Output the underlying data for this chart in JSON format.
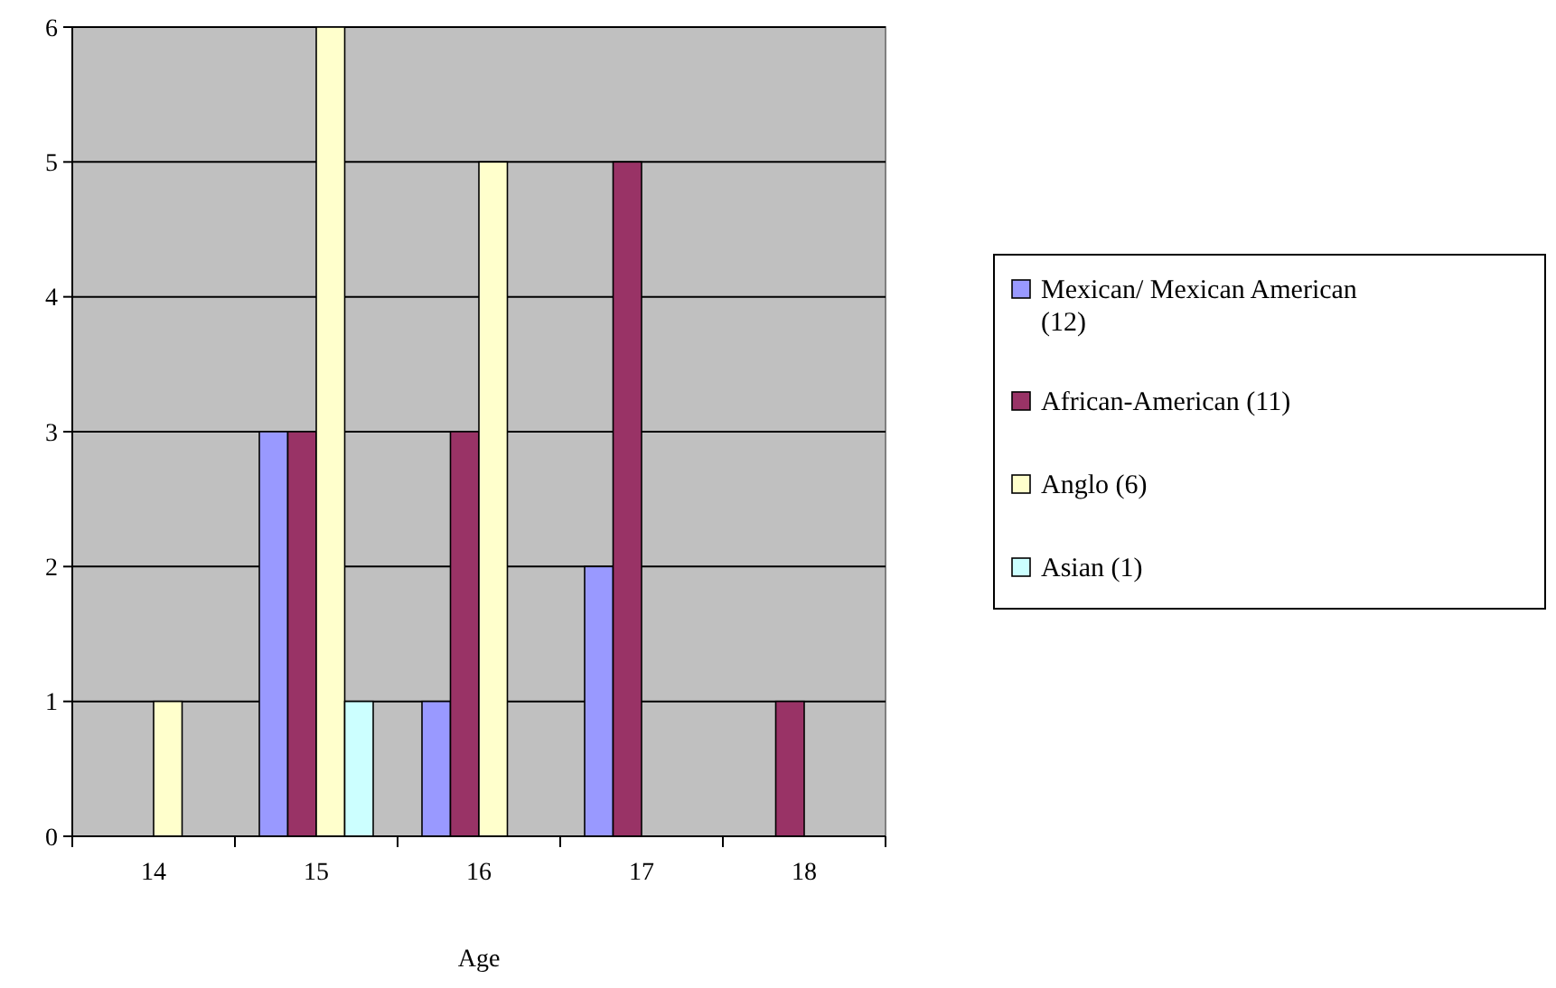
{
  "chart_data": {
    "type": "bar",
    "xlabel": "Age",
    "categories": [
      "14",
      "15",
      "16",
      "17",
      "18"
    ],
    "series": [
      {
        "name": "Mexican/ Mexican American (12)",
        "color": "#9999ff",
        "values": [
          0,
          3,
          1,
          2,
          0
        ]
      },
      {
        "name": "African-American (11)",
        "color": "#993366",
        "values": [
          0,
          3,
          3,
          5,
          1
        ]
      },
      {
        "name": "Anglo (6)",
        "color": "#ffffcc",
        "values": [
          1,
          6,
          5,
          0,
          0
        ]
      },
      {
        "name": "Asian (1)",
        "color": "#ccffff",
        "values": [
          0,
          1,
          0,
          0,
          0
        ]
      }
    ],
    "ylim": [
      0,
      6
    ],
    "yticks": [
      0,
      1,
      2,
      3,
      4,
      5,
      6
    ],
    "grid": "y",
    "legend": "right"
  }
}
